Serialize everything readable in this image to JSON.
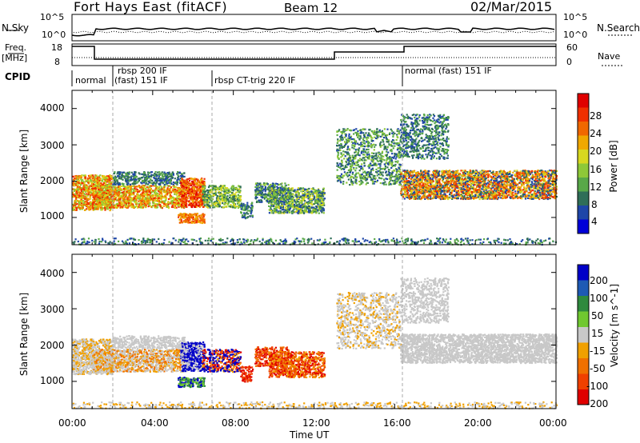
{
  "header": {
    "site": "Fort Hays East (fitACF)",
    "beam": "Beam 12",
    "date": "02/Mar/2015"
  },
  "top_panels": {
    "nsky_label": "N.Sky",
    "nsearch_label": "N.Search",
    "freq_label_line1": "Freq.",
    "freq_label_line2": "[MHz]",
    "nave_label": "Nave",
    "cpid_label": "CPID",
    "noise_ticks": [
      "10^5",
      "10^0"
    ],
    "freq_ticks": [
      "18",
      "8"
    ],
    "nave_ticks": [
      "60",
      "0"
    ],
    "cpid_segments": [
      "normal",
      "rbsp 200 IF",
      "(fast) 151 IF",
      "rbsp CT-trig 220 IF",
      "normal (fast) 151 IF"
    ]
  },
  "chart_data": [
    {
      "type": "heatmap",
      "name": "power-panel",
      "ylabel": "Slant Range [km]",
      "yticks": [
        1000,
        2000,
        3000,
        4000
      ],
      "colorbar_label": "Power [dB]",
      "colorbar_ticks": [
        "28",
        "24",
        "20",
        "16",
        "12",
        "8",
        "4"
      ],
      "colors": [
        "#0000d8",
        "#1e46a8",
        "#2f6e58",
        "#58a848",
        "#8ec838",
        "#d8d820",
        "#f0a800",
        "#f06800",
        "#f03000",
        "#e00000"
      ]
    },
    {
      "type": "heatmap",
      "name": "velocity-panel",
      "ylabel": "Slant Range [km]",
      "yticks": [
        1000,
        2000,
        3000,
        4000
      ],
      "colorbar_label": "Velocity [m s^-1]",
      "colorbar_ticks": [
        "200",
        "100",
        "50",
        "15",
        "-15",
        "-50",
        "-100",
        "-200"
      ],
      "colors": [
        "#0000c8",
        "#1e5ab4",
        "#2f8a3e",
        "#70c830",
        "#c8c8c8",
        "#f0a000",
        "#f07000",
        "#f04000",
        "#e00000"
      ]
    }
  ],
  "x_axis": {
    "label": "Time UT",
    "ticks": [
      "00:00",
      "04:00",
      "08:00",
      "12:00",
      "16:00",
      "20:00",
      "00:00"
    ]
  }
}
